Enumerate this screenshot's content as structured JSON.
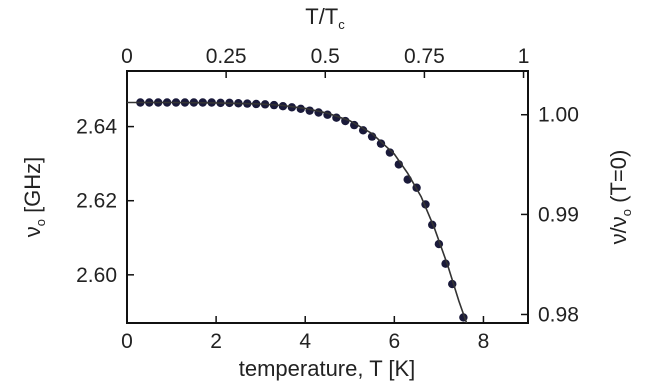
{
  "chart_data": {
    "type": "scatter",
    "xlabel": "temperature, T [K]",
    "x2label": {
      "main": "T/T",
      "sub": "c"
    },
    "ylabel": {
      "main": "ν",
      "sub": "o",
      "rest": " [GHz]"
    },
    "y2label": {
      "a": "ν/ν",
      "a_sub": "o",
      "b": " (T=0)"
    },
    "xlim": [
      0,
      9
    ],
    "ylim": [
      2.587,
      2.655
    ],
    "x_ticks": [
      0,
      2,
      4,
      6,
      8
    ],
    "x_tick_labels": [
      "0",
      "2",
      "4",
      "6",
      "8"
    ],
    "x2_ticks": [
      0,
      2.225,
      4.45,
      6.675,
      8.9
    ],
    "x2_tick_labels": [
      "0",
      "0.25",
      "0.5",
      "0.75",
      "1"
    ],
    "y_ticks": [
      2.6,
      2.62,
      2.64
    ],
    "y_tick_labels": [
      "2.60",
      "2.62",
      "2.64"
    ],
    "y2_ticks": [
      2.5893,
      2.6163,
      2.6432
    ],
    "y2_tick_labels": [
      "0.98",
      "0.99",
      "1.00"
    ],
    "series": [
      {
        "markers": true,
        "x": [
          0.3,
          0.5,
          0.7,
          0.9,
          1.1,
          1.3,
          1.5,
          1.7,
          1.9,
          2.1,
          2.3,
          2.5,
          2.7,
          2.9,
          3.1,
          3.3,
          3.5,
          3.7,
          3.9,
          4.1,
          4.3,
          4.5,
          4.7,
          4.9,
          5.1,
          5.3,
          5.5,
          5.7,
          5.9,
          6.1,
          6.3,
          6.5,
          6.7,
          6.85,
          7.0,
          7.15,
          7.3,
          7.55
        ],
        "y": [
          2.6465,
          2.6465,
          2.6465,
          2.6465,
          2.6465,
          2.6465,
          2.6465,
          2.6465,
          2.6465,
          2.6464,
          2.6464,
          2.6463,
          2.6462,
          2.6461,
          2.646,
          2.6458,
          2.6455,
          2.6452,
          2.6448,
          2.6443,
          2.6438,
          2.6432,
          2.6424,
          2.6415,
          2.6404,
          2.639,
          2.6373,
          2.6354,
          2.633,
          2.6298,
          2.6257,
          2.6235,
          2.619,
          2.6135,
          2.6083,
          2.603,
          2.5975,
          2.5885
        ]
      },
      {
        "markers": false,
        "x": [
          0,
          1,
          2,
          3,
          3.5,
          4,
          4.5,
          5,
          5.5,
          6,
          6.3,
          6.6,
          6.9,
          7.2,
          7.45,
          7.65
        ],
        "y": [
          2.6465,
          2.6465,
          2.6464,
          2.6461,
          2.6457,
          2.6449,
          2.6436,
          2.6416,
          2.6381,
          2.6326,
          2.6274,
          2.6211,
          2.6126,
          2.6025,
          2.5929,
          2.586
        ]
      }
    ]
  }
}
